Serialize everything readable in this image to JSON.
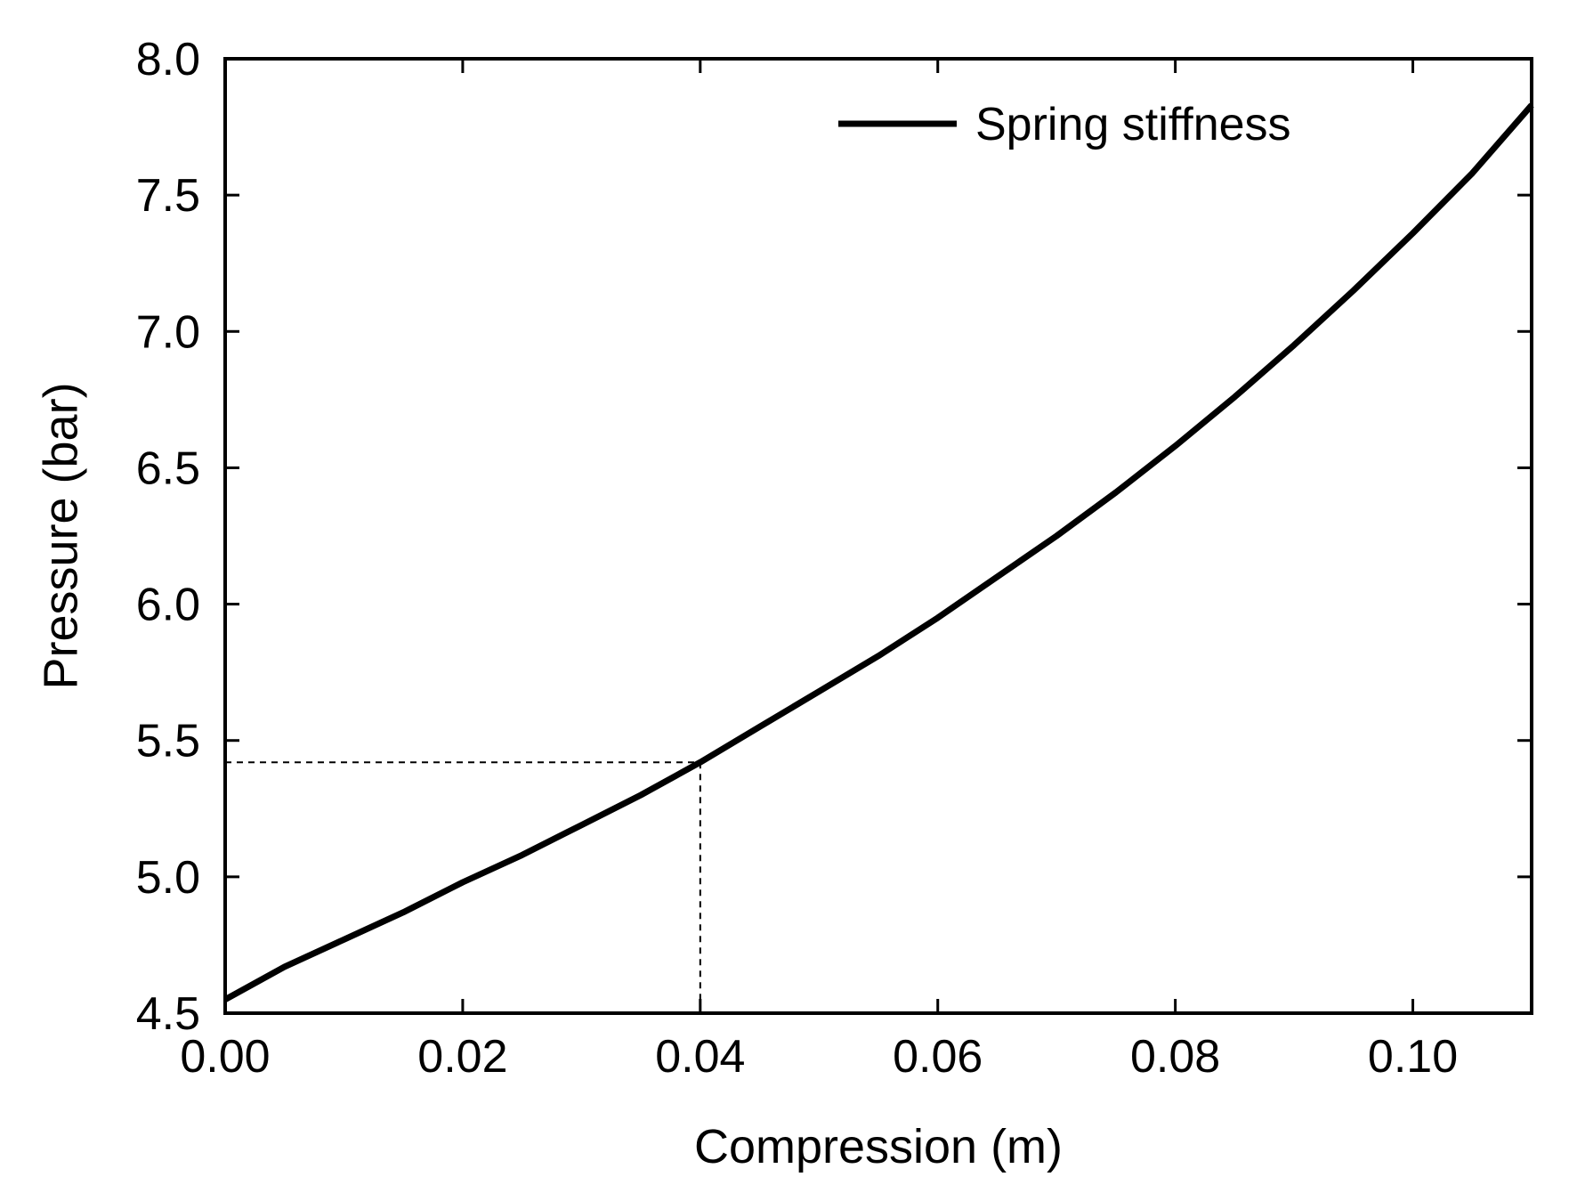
{
  "chart_data": {
    "type": "line",
    "xlabel": "Compression (m)",
    "ylabel": "Pressure (bar)",
    "xlim": [
      0.0,
      0.11
    ],
    "ylim": [
      4.5,
      8.0
    ],
    "xticks": [
      0.0,
      0.02,
      0.04,
      0.06,
      0.08,
      0.1
    ],
    "xtick_labels": [
      "0.00",
      "0.02",
      "0.04",
      "0.06",
      "0.08",
      "0.10"
    ],
    "yticks": [
      4.5,
      5.0,
      5.5,
      6.0,
      6.5,
      7.0,
      7.5,
      8.0
    ],
    "ytick_labels": [
      "4.5",
      "5.0",
      "5.5",
      "6.0",
      "6.5",
      "7.0",
      "7.5",
      "8.0"
    ],
    "legend_position": "top-right",
    "grid": false,
    "series": [
      {
        "name": "Spring stiffness",
        "color": "#000000",
        "x": [
          0.0,
          0.005,
          0.01,
          0.015,
          0.02,
          0.025,
          0.03,
          0.035,
          0.04,
          0.045,
          0.05,
          0.055,
          0.06,
          0.065,
          0.07,
          0.075,
          0.08,
          0.085,
          0.09,
          0.095,
          0.1,
          0.105,
          0.11
        ],
        "y": [
          4.55,
          4.67,
          4.77,
          4.87,
          4.98,
          5.08,
          5.19,
          5.3,
          5.42,
          5.55,
          5.68,
          5.81,
          5.95,
          6.1,
          6.25,
          6.41,
          6.58,
          6.76,
          6.95,
          7.15,
          7.36,
          7.58,
          7.83
        ]
      }
    ],
    "annotations": [
      {
        "type": "dashed-guide",
        "x": 0.04,
        "y": 5.42
      }
    ]
  }
}
